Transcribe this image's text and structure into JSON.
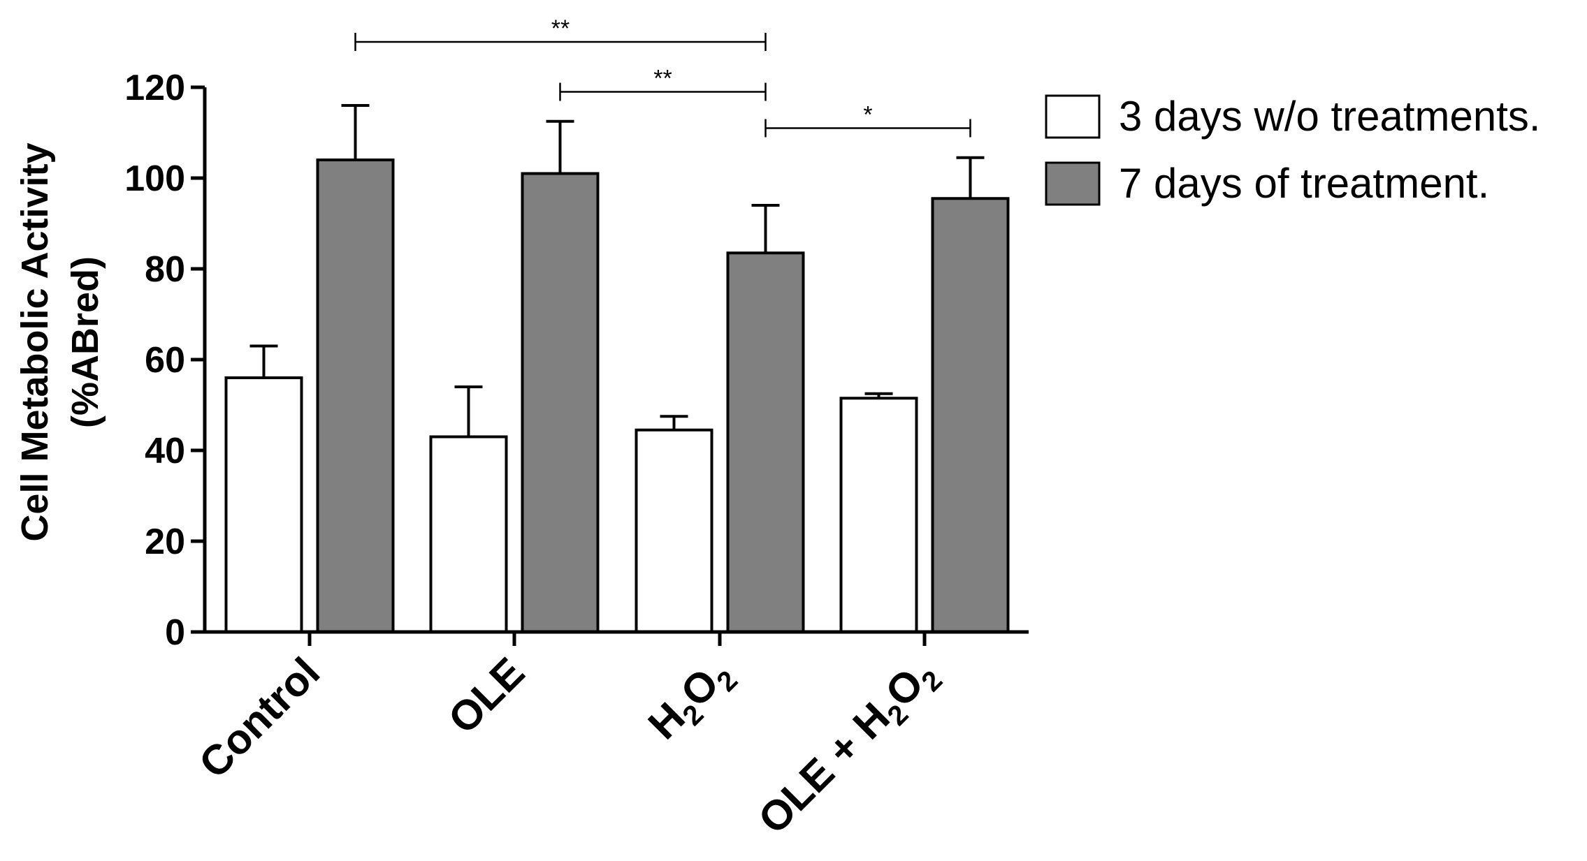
{
  "chart_data": {
    "type": "bar",
    "title": "",
    "xlabel": "",
    "ylabel_line1": "Cell Metabolic Activity",
    "ylabel_line2": "(%ABred)",
    "ylim": [
      0,
      120
    ],
    "yticks": [
      0,
      20,
      40,
      60,
      80,
      100,
      120
    ],
    "categories": [
      {
        "main": "Control"
      },
      {
        "main": "OLE"
      },
      {
        "main": "H",
        "sub1": "2",
        "mid": "O",
        "sub2": "2"
      },
      {
        "main": "OLE + H",
        "sub1": "2",
        "mid": "O",
        "sub2": "2"
      }
    ],
    "series": [
      {
        "name": "3 days w/o treatments.",
        "color": "#ffffff",
        "values": [
          56,
          43,
          44.5,
          51.5
        ],
        "errors": [
          7,
          11,
          3,
          1
        ]
      },
      {
        "name": "7 days of treatment.",
        "color": "#808080",
        "values": [
          104,
          101,
          83.5,
          95.5
        ],
        "errors": [
          12,
          11.5,
          10.5,
          9
        ]
      }
    ],
    "significance": [
      {
        "from": [
          0,
          1
        ],
        "to": [
          2,
          1
        ],
        "label": "**",
        "y": 130
      },
      {
        "from": [
          1,
          1
        ],
        "to": [
          2,
          1
        ],
        "label": "**",
        "y": 119
      },
      {
        "from": [
          2,
          1
        ],
        "to": [
          3,
          1
        ],
        "label": "*",
        "y": 111
      }
    ],
    "legend_position": "top-right"
  }
}
